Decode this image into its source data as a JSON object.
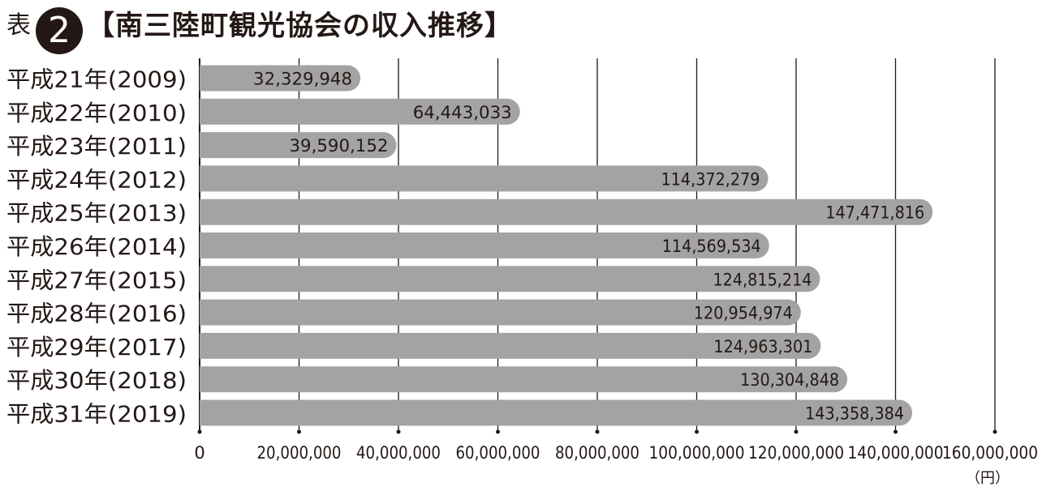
{
  "header": {
    "prefix": "表",
    "number": "2",
    "title": "【南三陸町観光協会の収入推移】"
  },
  "chart_data": {
    "type": "bar",
    "orientation": "horizontal",
    "categories": [
      "平成21年(2009)",
      "平成22年(2010)",
      "平成23年(2011)",
      "平成24年(2012)",
      "平成25年(2013)",
      "平成26年(2014)",
      "平成27年(2015)",
      "平成28年(2016)",
      "平成29年(2017)",
      "平成30年(2018)",
      "平成31年(2019)"
    ],
    "values": [
      32329948,
      64443033,
      39590152,
      114372279,
      147471816,
      114569534,
      124815214,
      120954974,
      124963301,
      130304848,
      143358384
    ],
    "value_labels": [
      "32,329,948",
      "64,443,033",
      "39,590,152",
      "114,372,279",
      "147,471,816",
      "114,569,534",
      "124,815,214",
      "120,954,974",
      "124,963,301",
      "130,304,848",
      "143,358,384"
    ],
    "xlim": [
      0,
      160000000
    ],
    "ticks": [
      0,
      20000000,
      40000000,
      60000000,
      80000000,
      100000000,
      120000000,
      140000000,
      160000000
    ],
    "tick_labels": [
      "0",
      "20,000,000",
      "40,000,000",
      "60,000,000",
      "80,000,000",
      "100,000,000",
      "120,000,000",
      "140,000,000",
      "160,000,000"
    ],
    "unit": "（円）",
    "grid": true,
    "colors": {
      "bar": "#a3a3a3",
      "grid": "#231815",
      "text": "#231815"
    }
  }
}
